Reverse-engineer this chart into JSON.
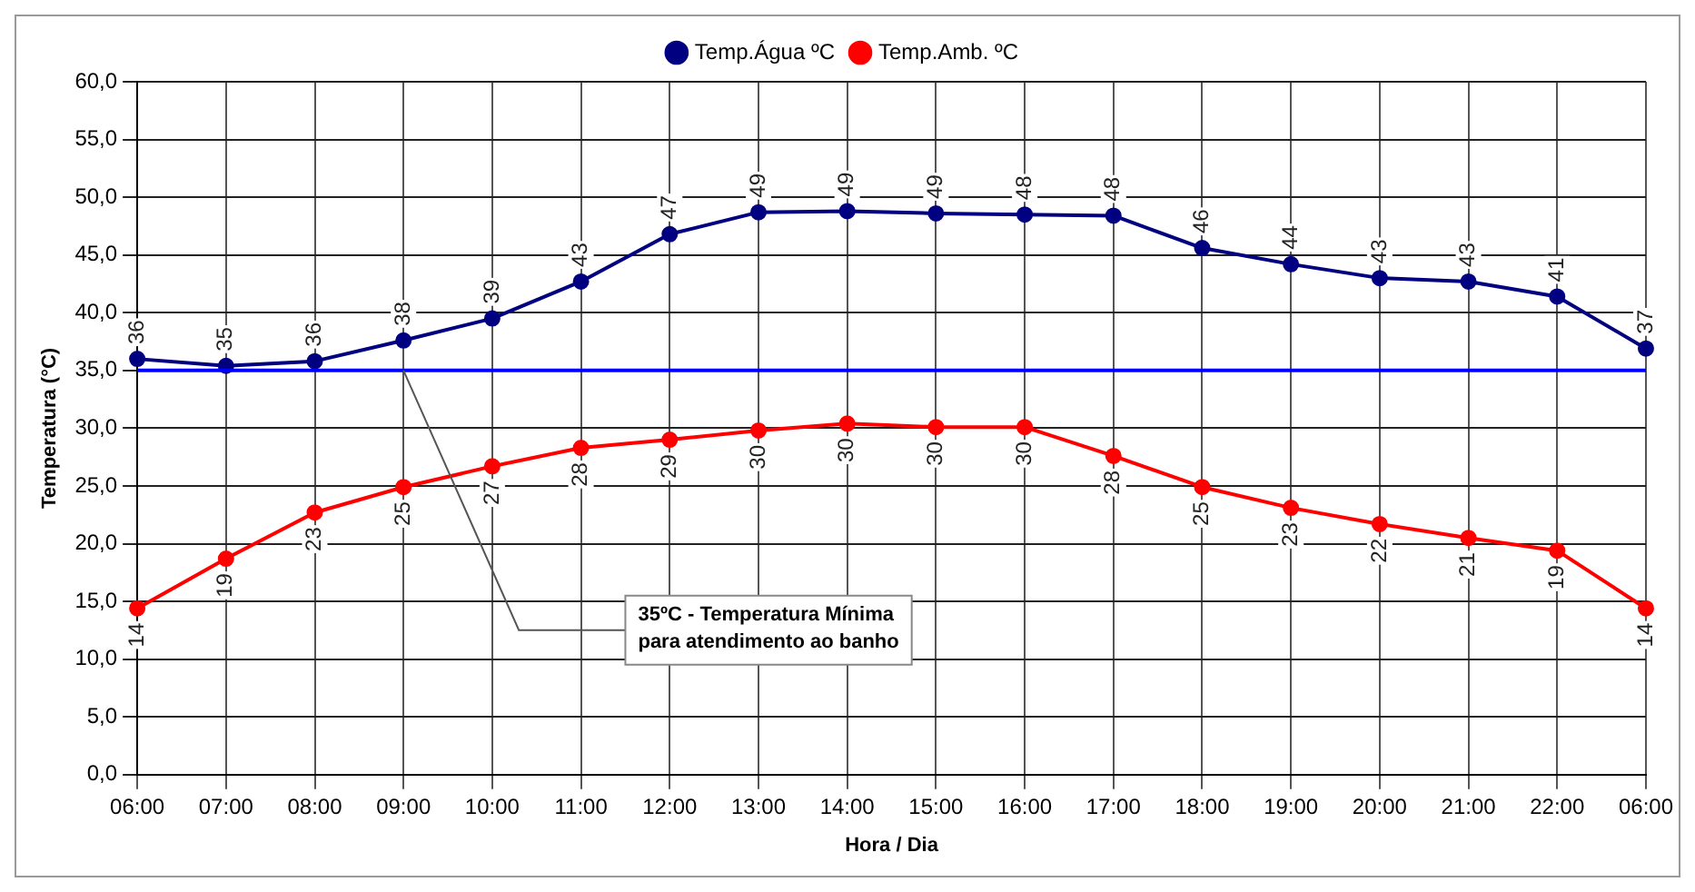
{
  "chart_data": {
    "type": "line",
    "categories": [
      "06:00",
      "07:00",
      "08:00",
      "09:00",
      "10:00",
      "11:00",
      "12:00",
      "13:00",
      "14:00",
      "15:00",
      "16:00",
      "17:00",
      "18:00",
      "19:00",
      "20:00",
      "21:00",
      "22:00",
      "06:00"
    ],
    "series": [
      {
        "name": "Temp.Água ºC",
        "color": "#000080",
        "values": [
          36.0,
          35.4,
          35.8,
          37.6,
          39.5,
          42.7,
          46.8,
          48.7,
          48.8,
          48.6,
          48.5,
          48.4,
          45.6,
          44.2,
          43.0,
          42.7,
          41.4,
          36.9
        ],
        "value_labels": [
          "36",
          "35",
          "36",
          "38",
          "39",
          "43",
          "47",
          "49",
          "49",
          "49",
          "48",
          "48",
          "46",
          "44",
          "43",
          "43",
          "41",
          "37"
        ]
      },
      {
        "name": "Temp.Amb. ºC",
        "color": "#ff0000",
        "values": [
          14.4,
          18.7,
          22.7,
          24.9,
          26.7,
          28.3,
          29.0,
          29.8,
          30.4,
          30.1,
          30.1,
          27.6,
          24.9,
          23.1,
          21.7,
          20.5,
          19.4,
          14.4
        ],
        "value_labels": [
          "14",
          "19",
          "23",
          "25",
          "27",
          "28",
          "29",
          "30",
          "30",
          "30",
          "30",
          "28",
          "25",
          "23",
          "22",
          "21",
          "19",
          "14"
        ]
      }
    ],
    "xlabel": "Hora / Dia",
    "ylabel": "Temperatura (°C)",
    "ylim": [
      0,
      60
    ],
    "yticks": [
      {
        "value": 0,
        "label": "0,0"
      },
      {
        "value": 5,
        "label": "5,0"
      },
      {
        "value": 10,
        "label": "10,0"
      },
      {
        "value": 15,
        "label": "15,0"
      },
      {
        "value": 20,
        "label": "20,0"
      },
      {
        "value": 25,
        "label": "25,0"
      },
      {
        "value": 30,
        "label": "30,0"
      },
      {
        "value": 35,
        "label": "35,0"
      },
      {
        "value": 40,
        "label": "40,0"
      },
      {
        "value": 45,
        "label": "45,0"
      },
      {
        "value": 50,
        "label": "50,0"
      },
      {
        "value": 55,
        "label": "55,0"
      },
      {
        "value": 60,
        "label": "60,0"
      }
    ],
    "ref_lines": [
      {
        "axis": "y",
        "value": 35,
        "label": "35ºC - Temperatura Mínima para atendimento ao banho",
        "color": "#0000ff"
      }
    ],
    "grid": true,
    "legend": "top",
    "marker": "circle",
    "line_style": "solid"
  }
}
